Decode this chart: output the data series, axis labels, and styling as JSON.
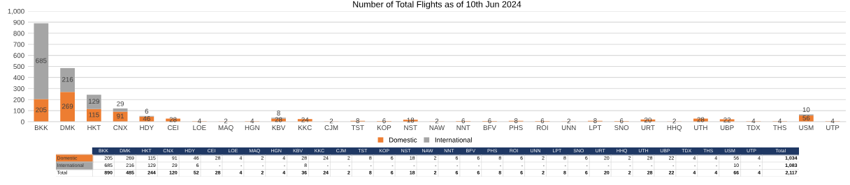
{
  "chart_data": [
    {
      "type": "bar",
      "title": "Number of Total Flights as of 10th Jun 2024",
      "stacked": true,
      "data_labels": true,
      "grid": "y",
      "legend": "bottom",
      "categories": [
        "BKK",
        "DMK",
        "HKT",
        "CNX",
        "HDY",
        "CEI",
        "LOE",
        "MAQ",
        "HGN",
        "KBV",
        "KKC",
        "CJM",
        "TST",
        "KOP",
        "NST",
        "NAW",
        "NNT",
        "BFV",
        "PHS",
        "ROI",
        "UNN",
        "LPT",
        "SNO",
        "URT",
        "HHQ",
        "UTH",
        "UBP",
        "TDX",
        "THS",
        "USM",
        "UTP"
      ],
      "series": [
        {
          "name": "Domestic",
          "color": "#ed7d31",
          "values": [
            205,
            269,
            115,
            91,
            46,
            28,
            4,
            2,
            4,
            28,
            24,
            2,
            8,
            6,
            18,
            2,
            6,
            6,
            8,
            6,
            2,
            8,
            6,
            20,
            2,
            28,
            22,
            4,
            4,
            56,
            4
          ]
        },
        {
          "name": "International",
          "color": "#a5a5a5",
          "values": [
            685,
            216,
            129,
            29,
            6,
            null,
            null,
            null,
            null,
            8,
            null,
            null,
            null,
            null,
            null,
            null,
            null,
            null,
            null,
            null,
            null,
            null,
            null,
            null,
            null,
            null,
            null,
            null,
            null,
            10,
            null
          ]
        }
      ],
      "ylim": [
        0,
        1000
      ],
      "yticks": [
        0,
        100,
        200,
        300,
        400,
        500,
        600,
        700,
        800,
        900,
        {
          "value": 1000,
          "label": "1,000"
        }
      ]
    },
    {
      "type": "other",
      "categories": [
        "BKK",
        "DMK",
        "HKT",
        "CNX",
        "HDY",
        "CEI",
        "LOE",
        "MAQ",
        "HGN",
        "KBV",
        "KKC",
        "CJM",
        "TST",
        "KOP",
        "NST",
        "NAW",
        "NNT",
        "BFV",
        "PHS",
        "ROI",
        "UNN",
        "LPT",
        "SNO",
        "URT",
        "HHQ",
        "UTH",
        "UBP",
        "TDX",
        "THS",
        "USM",
        "UTP"
      ],
      "series": [
        {
          "name": "Domestic",
          "values": [
            205,
            269,
            115,
            91,
            46,
            28,
            4,
            2,
            4,
            28,
            24,
            2,
            8,
            6,
            18,
            2,
            6,
            6,
            8,
            6,
            2,
            8,
            6,
            20,
            2,
            28,
            22,
            4,
            4,
            56,
            4
          ],
          "value_labels": [
            "205",
            "269",
            "115",
            "91",
            "46",
            "28",
            "4",
            "2",
            "4",
            "28",
            "24",
            "2",
            "8",
            "6",
            "18",
            "2",
            "6",
            "6",
            "8",
            "6",
            "2",
            "8",
            "6",
            "20",
            "2",
            "28",
            "22",
            "4",
            "4",
            "56",
            "4"
          ]
        },
        {
          "name": "International",
          "values": [
            685,
            216,
            129,
            29,
            6,
            null,
            null,
            null,
            null,
            8,
            null,
            null,
            null,
            null,
            null,
            null,
            null,
            null,
            null,
            null,
            null,
            null,
            null,
            null,
            null,
            null,
            null,
            null,
            null,
            10,
            null
          ],
          "value_labels": [
            "685",
            "216",
            "129",
            "29",
            "6",
            "-",
            "-",
            "-",
            "-",
            "8",
            "-",
            "-",
            "-",
            "-",
            "-",
            "-",
            "-",
            "-",
            "-",
            "-",
            "-",
            "-",
            "-",
            "-",
            "-",
            "-",
            "-",
            "-",
            "-",
            "10",
            "-"
          ]
        }
      ],
      "totals": [
        "890",
        "485",
        "244",
        "120",
        "52",
        "28",
        "4",
        "2",
        "4",
        "36",
        "24",
        "2",
        "8",
        "6",
        "18",
        "2",
        "6",
        "6",
        "8",
        "6",
        "2",
        "8",
        "6",
        "20",
        "2",
        "28",
        "22",
        "4",
        "4",
        "66",
        "4"
      ],
      "annotations": [
        "Total",
        "1,034",
        "1,083",
        "2,117"
      ]
    }
  ]
}
